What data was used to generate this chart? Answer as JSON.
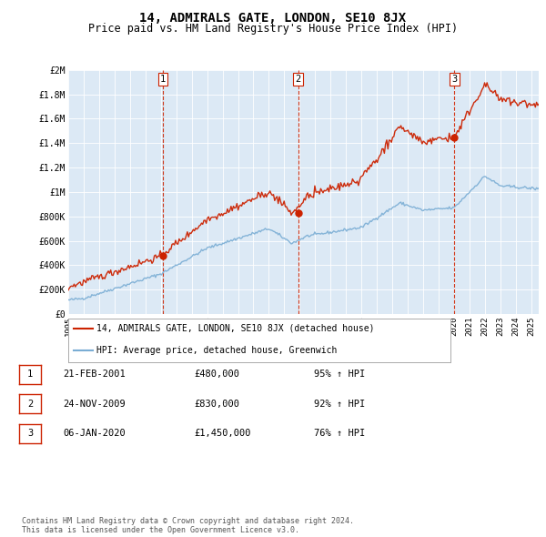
{
  "title": "14, ADMIRALS GATE, LONDON, SE10 8JX",
  "subtitle": "Price paid vs. HM Land Registry's House Price Index (HPI)",
  "title_fontsize": 10,
  "subtitle_fontsize": 8.5,
  "sale_dates": [
    2001.13,
    2009.9,
    2020.03
  ],
  "sale_prices": [
    480000,
    830000,
    1450000
  ],
  "sale_labels": [
    "1",
    "2",
    "3"
  ],
  "hpi_color": "#7aadd4",
  "price_color": "#cc2200",
  "marker_color": "#cc2200",
  "vline_color": "#cc2200",
  "ylabel_max": 2000000,
  "yticks": [
    0,
    200000,
    400000,
    600000,
    800000,
    1000000,
    1200000,
    1400000,
    1600000,
    1800000,
    2000000
  ],
  "ytick_labels": [
    "£0",
    "£200K",
    "£400K",
    "£600K",
    "£800K",
    "£1M",
    "£1.2M",
    "£1.4M",
    "£1.6M",
    "£1.8M",
    "£2M"
  ],
  "xmin": 1995.0,
  "xmax": 2025.5,
  "legend_entries": [
    "14, ADMIRALS GATE, LONDON, SE10 8JX (detached house)",
    "HPI: Average price, detached house, Greenwich"
  ],
  "table_data": [
    [
      "1",
      "21-FEB-2001",
      "£480,000",
      "95% ↑ HPI"
    ],
    [
      "2",
      "24-NOV-2009",
      "£830,000",
      "92% ↑ HPI"
    ],
    [
      "3",
      "06-JAN-2020",
      "£1,450,000",
      "76% ↑ HPI"
    ]
  ],
  "footer": "Contains HM Land Registry data © Crown copyright and database right 2024.\nThis data is licensed under the Open Government Licence v3.0.",
  "plot_bg_color": "#dce9f5"
}
